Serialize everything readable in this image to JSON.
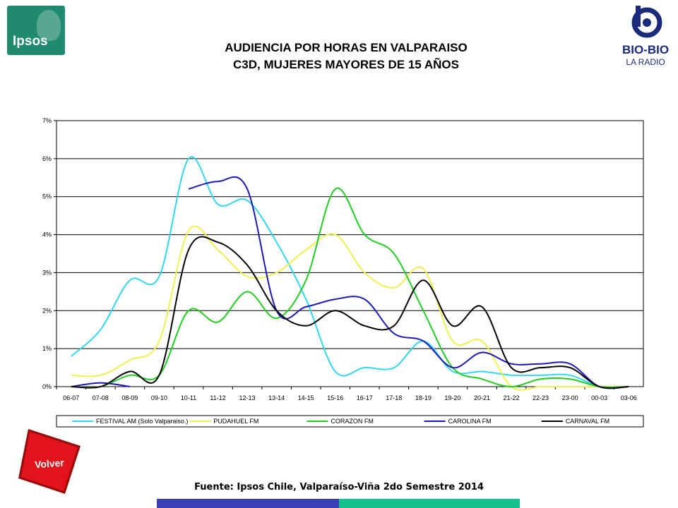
{
  "logos": {
    "ipsos_text": "Ipsos",
    "bio_top": "BIO-BIO",
    "bio_bottom": "LA RADIO"
  },
  "title_line1": "AUDIENCIA POR HORAS EN VALPARAISO",
  "title_line2": "C3D, MUJERES MAYORES DE 15 AÑOS",
  "source": "Fuente: Ipsos Chile, Valparaíso-Viña 2do Semestre 2014",
  "volver_label": "Volver",
  "chart_data": {
    "type": "line",
    "categories": [
      "06-07",
      "07-08",
      "08-09",
      "09-10",
      "10-11",
      "11-12",
      "12-13",
      "13-14",
      "14-15",
      "15-16",
      "16-17",
      "17-18",
      "18-19",
      "19-20",
      "20-21",
      "21-22",
      "22-23",
      "23-00",
      "00-03",
      "03-06"
    ],
    "yticks": [
      "0%",
      "1%",
      "2%",
      "3%",
      "4%",
      "5%",
      "6%",
      "7%"
    ],
    "ylim": [
      0,
      7
    ],
    "grid": true,
    "legend_position": "bottom",
    "series": [
      {
        "name": "FESTIVAL AM (Solo Valparaiso.)",
        "color": "#33d6f0",
        "values": [
          0.8,
          1.5,
          2.8,
          2.9,
          6.0,
          4.8,
          4.9,
          3.8,
          2.3,
          0.4,
          0.5,
          0.5,
          1.2,
          0.4,
          0.4,
          0.3,
          0.3,
          0.3,
          0.0,
          0.0
        ]
      },
      {
        "name": "PUDAHUEL FM",
        "color": "#f0f050",
        "values": [
          0.3,
          0.3,
          0.7,
          1.2,
          4.1,
          3.6,
          2.9,
          3.0,
          3.6,
          4.0,
          3.0,
          2.6,
          3.1,
          1.2,
          1.2,
          0.0,
          0.0,
          0.0,
          0.0,
          0.0
        ]
      },
      {
        "name": "CORAZON FM",
        "color": "#22cc22",
        "values": [
          0.0,
          0.0,
          0.3,
          0.3,
          2.0,
          1.7,
          2.5,
          1.8,
          2.8,
          5.2,
          4.0,
          3.5,
          2.0,
          0.5,
          0.2,
          0.0,
          0.2,
          0.2,
          0.0,
          0.0
        ]
      },
      {
        "name": "CAROLINA FM",
        "color": "#1a1ab5",
        "values": [
          0.0,
          0.1,
          0.0,
          null,
          5.2,
          5.4,
          5.2,
          2.0,
          2.1,
          2.3,
          2.3,
          1.4,
          1.2,
          0.5,
          0.9,
          0.6,
          0.6,
          0.6,
          0.0,
          0.0
        ]
      },
      {
        "name": "CARNAVAL FM",
        "color": "#000000",
        "values": [
          0.0,
          0.0,
          0.4,
          0.3,
          3.6,
          3.8,
          3.2,
          2.0,
          1.6,
          2.0,
          1.6,
          1.6,
          2.8,
          1.6,
          2.1,
          0.5,
          0.5,
          0.5,
          0.0,
          0.0
        ]
      }
    ]
  }
}
